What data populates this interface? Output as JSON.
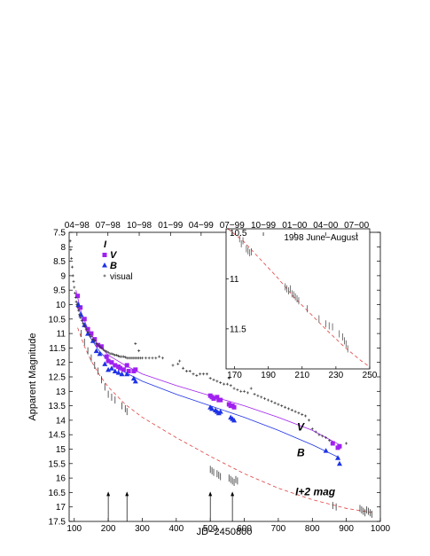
{
  "chart_data": {
    "type": "scatter",
    "xlabel": "JD−2450800",
    "ylabel": "Apparent Magnitude",
    "xlim": [
      85,
      1000
    ],
    "ylim": [
      17.5,
      7.5
    ],
    "y_inverted": true,
    "x_ticks": [
      "100",
      "200",
      "300",
      "400",
      "500",
      "600",
      "700",
      "800",
      "900",
      "1000"
    ],
    "x_tick_values": [
      100,
      200,
      300,
      400,
      500,
      600,
      700,
      800,
      900,
      1000
    ],
    "y_ticks": [
      "7.5",
      "8",
      "8.5",
      "9",
      "9.5",
      "10",
      "10.5",
      "11",
      "11.5",
      "12",
      "12.5",
      "13",
      "13.5",
      "14",
      "14.5",
      "15",
      "15.5",
      "16",
      "16.5",
      "17",
      "17.5"
    ],
    "y_tick_values": [
      7.5,
      8,
      8.5,
      9,
      9.5,
      10,
      10.5,
      11,
      11.5,
      12,
      12.5,
      13,
      13.5,
      14,
      14.5,
      15,
      15.5,
      16,
      16.5,
      17,
      17.5
    ],
    "top_axis_labels": [
      {
        "label": "04−98",
        "x": 108
      },
      {
        "label": "07−98",
        "x": 199
      },
      {
        "label": "10−98",
        "x": 291
      },
      {
        "label": "01−99",
        "x": 383
      },
      {
        "label": "04−99",
        "x": 473
      },
      {
        "label": "07−99",
        "x": 564
      },
      {
        "label": "10−99",
        "x": 656
      },
      {
        "label": "01−00",
        "x": 748
      },
      {
        "label": "04−00",
        "x": 839
      },
      {
        "label": "07−00",
        "x": 930
      }
    ],
    "legend": {
      "placement": "top-left",
      "entries": [
        {
          "label": "I",
          "marker": "none",
          "color": "#000000"
        },
        {
          "label": "V",
          "marker": "square",
          "color": "#a020f0"
        },
        {
          "label": "B",
          "marker": "triangle",
          "color": "#1e32e6"
        },
        {
          "label": "visual",
          "marker": "plus",
          "color": "#333333"
        }
      ]
    },
    "series_labels": [
      {
        "text": "V",
        "x": 755,
        "y": 14.35
      },
      {
        "text": "B",
        "x": 755,
        "y": 15.25
      },
      {
        "text": "I+2 mag",
        "x": 750,
        "y": 16.6
      }
    ],
    "arrows_x": [
      200,
      255,
      500,
      565
    ],
    "arrows_y": [
      16.5,
      17.5
    ],
    "series": [
      {
        "name": "V",
        "marker": "square",
        "color": "#a020f0",
        "points": [
          [
            110,
            9.7
          ],
          [
            118,
            10.1
          ],
          [
            130,
            10.5
          ],
          [
            140,
            10.85
          ],
          [
            150,
            11.0
          ],
          [
            160,
            11.2
          ],
          [
            170,
            11.4
          ],
          [
            180,
            11.45
          ],
          [
            195,
            11.8
          ],
          [
            200,
            11.95
          ],
          [
            210,
            12.0
          ],
          [
            220,
            12.1
          ],
          [
            230,
            12.15
          ],
          [
            235,
            12.2
          ],
          [
            245,
            12.25
          ],
          [
            255,
            12.1
          ],
          [
            260,
            12.3
          ],
          [
            275,
            12.3
          ],
          [
            280,
            12.25
          ],
          [
            500,
            13.15
          ],
          [
            505,
            13.2
          ],
          [
            510,
            13.25
          ],
          [
            520,
            13.2
          ],
          [
            525,
            13.3
          ],
          [
            530,
            13.3
          ],
          [
            555,
            13.45
          ],
          [
            560,
            13.5
          ],
          [
            565,
            13.5
          ],
          [
            570,
            13.55
          ],
          [
            860,
            14.8
          ],
          [
            875,
            14.95
          ],
          [
            880,
            14.9
          ]
        ],
        "fit": [
          [
            105,
            9.5
          ],
          [
            120,
            10.25
          ],
          [
            140,
            10.85
          ],
          [
            165,
            11.3
          ],
          [
            200,
            11.75
          ],
          [
            250,
            12.1
          ],
          [
            300,
            12.4
          ],
          [
            400,
            12.8
          ],
          [
            500,
            13.15
          ],
          [
            600,
            13.5
          ],
          [
            700,
            13.9
          ],
          [
            800,
            14.35
          ],
          [
            880,
            14.85
          ]
        ]
      },
      {
        "name": "B",
        "marker": "triangle",
        "color": "#1e32e6",
        "points": [
          [
            112,
            10.0
          ],
          [
            120,
            10.35
          ],
          [
            130,
            10.7
          ],
          [
            140,
            11.0
          ],
          [
            155,
            11.25
          ],
          [
            165,
            11.6
          ],
          [
            175,
            11.7
          ],
          [
            190,
            12.05
          ],
          [
            200,
            12.25
          ],
          [
            210,
            12.2
          ],
          [
            220,
            12.3
          ],
          [
            230,
            12.35
          ],
          [
            240,
            12.4
          ],
          [
            255,
            12.4
          ],
          [
            275,
            12.55
          ],
          [
            280,
            12.65
          ],
          [
            500,
            13.55
          ],
          [
            505,
            13.6
          ],
          [
            515,
            13.65
          ],
          [
            520,
            13.7
          ],
          [
            525,
            13.75
          ],
          [
            530,
            13.7
          ],
          [
            560,
            13.9
          ],
          [
            565,
            13.95
          ],
          [
            570,
            14.0
          ],
          [
            840,
            15.05
          ],
          [
            875,
            15.3
          ],
          [
            880,
            15.5
          ]
        ],
        "fit": [
          [
            108,
            9.9
          ],
          [
            125,
            10.6
          ],
          [
            145,
            11.1
          ],
          [
            170,
            11.55
          ],
          [
            200,
            11.95
          ],
          [
            250,
            12.35
          ],
          [
            300,
            12.65
          ],
          [
            400,
            13.1
          ],
          [
            500,
            13.5
          ],
          [
            600,
            13.9
          ],
          [
            700,
            14.35
          ],
          [
            800,
            14.85
          ],
          [
            880,
            15.3
          ]
        ]
      },
      {
        "name": "visual",
        "marker": "plus",
        "color": "#333333",
        "points": [
          [
            88,
            7.8
          ],
          [
            90,
            8.1
          ],
          [
            92,
            8.4
          ],
          [
            94,
            8.7
          ],
          [
            96,
            9.0
          ],
          [
            98,
            9.2
          ],
          [
            100,
            9.4
          ],
          [
            102,
            9.6
          ],
          [
            104,
            9.75
          ],
          [
            106,
            9.9
          ],
          [
            108,
            10.0
          ],
          [
            110,
            10.1
          ],
          [
            112,
            10.2
          ],
          [
            115,
            10.35
          ],
          [
            118,
            10.45
          ],
          [
            122,
            10.55
          ],
          [
            126,
            10.65
          ],
          [
            130,
            10.75
          ],
          [
            135,
            10.85
          ],
          [
            140,
            10.95
          ],
          [
            145,
            11.05
          ],
          [
            150,
            11.1
          ],
          [
            155,
            11.2
          ],
          [
            160,
            11.25
          ],
          [
            165,
            11.35
          ],
          [
            170,
            11.4
          ],
          [
            175,
            11.45
          ],
          [
            180,
            11.5
          ],
          [
            185,
            11.55
          ],
          [
            190,
            11.6
          ],
          [
            195,
            11.62
          ],
          [
            200,
            11.65
          ],
          [
            205,
            11.7
          ],
          [
            210,
            11.7
          ],
          [
            215,
            11.72
          ],
          [
            220,
            11.75
          ],
          [
            225,
            11.75
          ],
          [
            230,
            11.78
          ],
          [
            235,
            11.8
          ],
          [
            240,
            11.8
          ],
          [
            245,
            11.8
          ],
          [
            250,
            11.82
          ],
          [
            255,
            11.85
          ],
          [
            260,
            11.85
          ],
          [
            265,
            11.85
          ],
          [
            270,
            11.85
          ],
          [
            275,
            11.85
          ],
          [
            280,
            11.85
          ],
          [
            285,
            11.85
          ],
          [
            290,
            11.85
          ],
          [
            295,
            11.85
          ],
          [
            300,
            11.85
          ],
          [
            310,
            11.85
          ],
          [
            320,
            11.85
          ],
          [
            330,
            11.85
          ],
          [
            340,
            11.85
          ],
          [
            350,
            11.8
          ],
          [
            360,
            11.85
          ],
          [
            280,
            11.35
          ],
          [
            290,
            11.6
          ],
          [
            390,
            12.1
          ],
          [
            405,
            12.05
          ],
          [
            410,
            11.95
          ],
          [
            420,
            12.2
          ],
          [
            430,
            12.3
          ],
          [
            440,
            12.3
          ],
          [
            450,
            12.4
          ],
          [
            460,
            12.45
          ],
          [
            470,
            12.4
          ],
          [
            480,
            12.4
          ],
          [
            490,
            12.4
          ],
          [
            500,
            12.55
          ],
          [
            510,
            12.6
          ],
          [
            520,
            12.65
          ],
          [
            530,
            12.7
          ],
          [
            540,
            12.75
          ],
          [
            550,
            12.75
          ],
          [
            555,
            12.55
          ],
          [
            560,
            12.8
          ],
          [
            570,
            12.9
          ],
          [
            580,
            12.95
          ],
          [
            590,
            13.0
          ],
          [
            600,
            13.0
          ],
          [
            610,
            13.05
          ],
          [
            620,
            12.9
          ],
          [
            630,
            13.1
          ],
          [
            640,
            13.15
          ],
          [
            650,
            13.2
          ],
          [
            660,
            13.25
          ],
          [
            670,
            13.3
          ],
          [
            680,
            13.35
          ],
          [
            690,
            13.4
          ],
          [
            700,
            13.45
          ],
          [
            710,
            13.5
          ],
          [
            720,
            13.55
          ],
          [
            730,
            13.6
          ],
          [
            740,
            13.65
          ],
          [
            750,
            13.7
          ],
          [
            760,
            13.75
          ],
          [
            770,
            13.8
          ],
          [
            780,
            13.85
          ],
          [
            790,
            14.0
          ],
          [
            800,
            14.3
          ],
          [
            810,
            14.4
          ],
          [
            820,
            14.5
          ],
          [
            830,
            14.55
          ],
          [
            840,
            14.6
          ],
          [
            850,
            14.7
          ],
          [
            900,
            14.8
          ]
        ]
      },
      {
        "name": "I+2 mag",
        "marker": "dash",
        "color": "#333333",
        "points": [
          [
            120,
            11.0
          ],
          [
            130,
            11.3
          ],
          [
            140,
            11.6
          ],
          [
            150,
            11.85
          ],
          [
            160,
            12.1
          ],
          [
            170,
            12.3
          ],
          [
            180,
            12.6
          ],
          [
            190,
            12.85
          ],
          [
            200,
            13.1
          ],
          [
            210,
            13.2
          ],
          [
            220,
            13.3
          ],
          [
            240,
            13.5
          ],
          [
            250,
            13.6
          ],
          [
            255,
            13.7
          ],
          [
            500,
            15.7
          ],
          [
            505,
            15.75
          ],
          [
            510,
            15.8
          ],
          [
            520,
            15.85
          ],
          [
            525,
            15.9
          ],
          [
            530,
            15.95
          ],
          [
            555,
            16.0
          ],
          [
            560,
            16.05
          ],
          [
            565,
            16.1
          ],
          [
            570,
            16.15
          ],
          [
            575,
            16.05
          ],
          [
            580,
            16.1
          ],
          [
            860,
            16.95
          ],
          [
            870,
            17.0
          ],
          [
            940,
            17.05
          ],
          [
            945,
            17.1
          ],
          [
            950,
            17.15
          ],
          [
            955,
            17.2
          ],
          [
            960,
            17.1
          ],
          [
            965,
            17.15
          ],
          [
            970,
            17.2
          ],
          [
            975,
            17.25
          ]
        ],
        "fit": [
          [
            110,
            10.8
          ],
          [
            130,
            11.45
          ],
          [
            150,
            11.95
          ],
          [
            175,
            12.45
          ],
          [
            200,
            12.85
          ],
          [
            250,
            13.45
          ],
          [
            300,
            13.9
          ],
          [
            400,
            14.6
          ],
          [
            500,
            15.25
          ],
          [
            600,
            15.85
          ],
          [
            700,
            16.35
          ],
          [
            800,
            16.75
          ],
          [
            900,
            17.05
          ],
          [
            980,
            17.2
          ]
        ]
      }
    ]
  },
  "inset": {
    "title": "1998 June−August",
    "xlim": [
      165,
      250
    ],
    "ylim": [
      11.9,
      10.5
    ],
    "x_ticks": [
      "170",
      "190",
      "210",
      "230",
      "250"
    ],
    "x_tick_values": [
      170,
      190,
      210,
      230,
      250
    ],
    "y_ticks": [
      "10.5",
      "11",
      "11.5"
    ],
    "y_tick_values": [
      10.5,
      11,
      11.5
    ],
    "points": [
      [
        173,
        10.6
      ],
      [
        174,
        10.65
      ],
      [
        175,
        10.62
      ],
      [
        177,
        10.7
      ],
      [
        178,
        10.72
      ],
      [
        179,
        10.74
      ],
      [
        180,
        10.73
      ],
      [
        200,
        11.08
      ],
      [
        201,
        11.1
      ],
      [
        202,
        11.12
      ],
      [
        203,
        11.1
      ],
      [
        204,
        11.15
      ],
      [
        205,
        11.16
      ],
      [
        206,
        11.18
      ],
      [
        207,
        11.2
      ],
      [
        208,
        11.22
      ],
      [
        213,
        11.3
      ],
      [
        220,
        11.4
      ],
      [
        224,
        11.45
      ],
      [
        226,
        11.47
      ],
      [
        228,
        11.48
      ],
      [
        232,
        11.55
      ],
      [
        234,
        11.58
      ],
      [
        235,
        11.62
      ],
      [
        236,
        11.65
      ],
      [
        237,
        11.7
      ]
    ],
    "fit": [
      [
        166,
        10.5
      ],
      [
        175,
        10.62
      ],
      [
        185,
        10.8
      ],
      [
        195,
        10.98
      ],
      [
        205,
        11.18
      ],
      [
        215,
        11.35
      ],
      [
        225,
        11.52
      ],
      [
        235,
        11.68
      ],
      [
        245,
        11.82
      ],
      [
        250,
        11.88
      ]
    ]
  }
}
